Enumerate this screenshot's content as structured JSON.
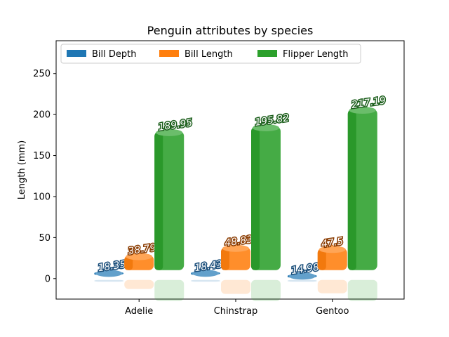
{
  "chart_data": {
    "type": "bar",
    "title": "Penguin attributes by species",
    "xlabel": "",
    "ylabel": "Length (mm)",
    "categories": [
      "Adelie",
      "Chinstrap",
      "Gentoo"
    ],
    "ylim": [
      -25,
      290
    ],
    "yticks": [
      0,
      50,
      100,
      150,
      200,
      250
    ],
    "grid": false,
    "legend_position": "top",
    "series": [
      {
        "name": "Bill Depth",
        "color": "#1f77b4",
        "label_color": "#1a4e7a",
        "values": [
          18.35,
          18.43,
          14.98
        ],
        "labels": [
          "18.35",
          "18.43",
          "14.98"
        ]
      },
      {
        "name": "Bill Length",
        "color": "#ff7f0e",
        "label_color": "#8a3b00",
        "values": [
          38.79,
          48.83,
          47.5
        ],
        "labels": [
          "38.79",
          "48.83",
          "47.5"
        ]
      },
      {
        "name": "Flipper Length",
        "color": "#2ca02c",
        "label_color": "#1b5e1b",
        "values": [
          189.95,
          195.82,
          217.19
        ],
        "labels": [
          "189.95",
          "195.82",
          "217.19"
        ]
      }
    ]
  }
}
